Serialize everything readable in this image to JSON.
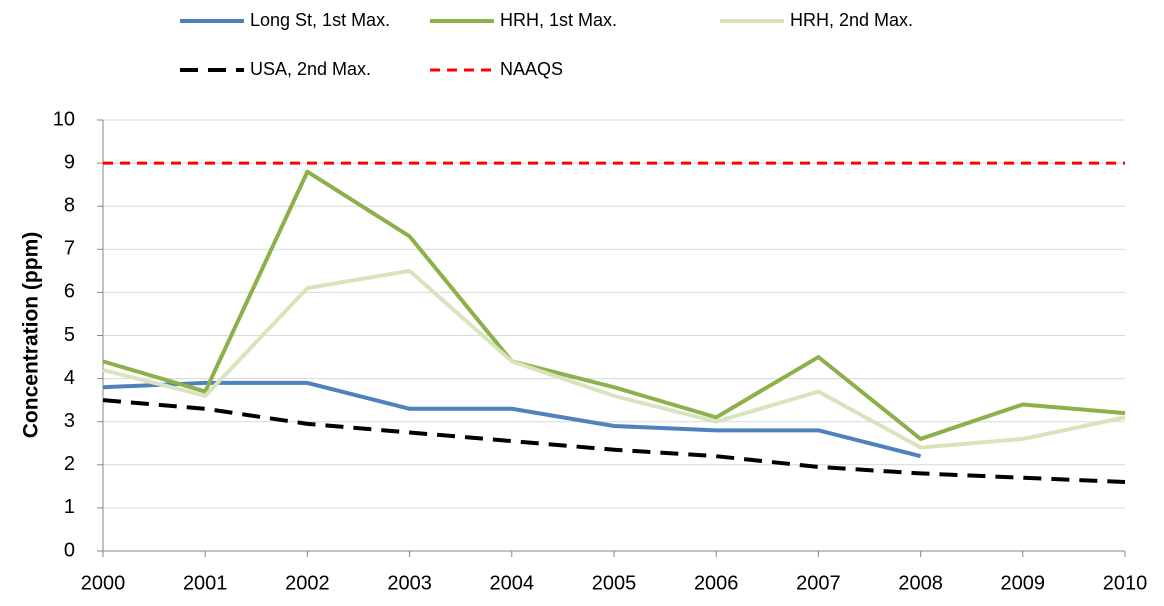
{
  "chart_data": {
    "type": "line",
    "y_label": "Concentration (ppm)",
    "categories": [
      "2000",
      "2001",
      "2002",
      "2003",
      "2004",
      "2005",
      "2006",
      "2007",
      "2008",
      "2009",
      "2010"
    ],
    "series": [
      {
        "name": "Long St, 1st Max.",
        "color": "#4f81bd",
        "line_style": "solid",
        "values": [
          3.8,
          3.9,
          3.9,
          3.3,
          3.3,
          2.9,
          2.8,
          2.8,
          2.2,
          null,
          null
        ]
      },
      {
        "name": "HRH, 1st Max.",
        "color": "#8cb04a",
        "line_style": "solid",
        "values": [
          4.4,
          3.7,
          8.8,
          7.3,
          4.4,
          3.8,
          3.1,
          4.5,
          2.6,
          3.4,
          3.2
        ]
      },
      {
        "name": "HRH, 2nd Max.",
        "color": "#d7e4bd",
        "line_style": "solid",
        "values": [
          4.2,
          3.6,
          6.1,
          6.5,
          4.4,
          3.6,
          3.0,
          3.7,
          2.4,
          2.6,
          3.1
        ]
      },
      {
        "name": "USA, 2nd Max.",
        "color": "#000000",
        "line_style": "dashed",
        "values": [
          3.5,
          3.3,
          2.95,
          2.75,
          2.55,
          2.35,
          2.2,
          1.95,
          1.8,
          1.7,
          1.6
        ]
      },
      {
        "name": "NAAQS",
        "color": "#ff0000",
        "line_style": "dashed",
        "values": [
          9,
          9,
          9,
          9,
          9,
          9,
          9,
          9,
          9,
          9,
          9
        ]
      }
    ],
    "ylim": [
      0,
      10
    ],
    "yticks": [
      0,
      1,
      2,
      3,
      4,
      5,
      6,
      7,
      8,
      9,
      10
    ],
    "grid": true
  }
}
